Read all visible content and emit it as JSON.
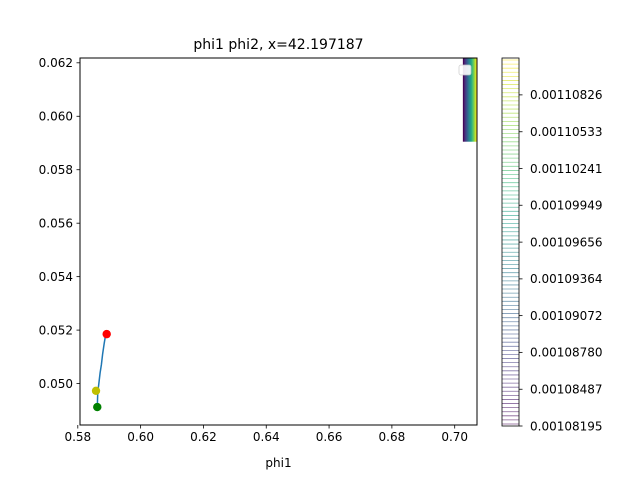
{
  "chart_data": {
    "type": "line",
    "title": "phi1 phi2, x=42.197187",
    "xlabel": "phi1",
    "ylabel": "",
    "xlim": [
      0.5807,
      0.7071
    ],
    "ylim": [
      0.04845,
      0.06218
    ],
    "xticks": [
      0.58,
      0.6,
      0.62,
      0.64,
      0.66,
      0.68,
      0.7
    ],
    "xtick_labels": [
      "0.58",
      "0.60",
      "0.62",
      "0.64",
      "0.66",
      "0.68",
      "0.70"
    ],
    "yticks": [
      0.05,
      0.052,
      0.054,
      0.056,
      0.058,
      0.06,
      0.062
    ],
    "ytick_labels": [
      "0.050",
      "0.052",
      "0.054",
      "0.056",
      "0.058",
      "0.060",
      "0.062"
    ],
    "series": [
      {
        "color": "#1f77b4",
        "x": [
          0.5862,
          0.5863,
          0.5864,
          0.5866,
          0.5868,
          0.5871,
          0.5875,
          0.5879,
          0.5884,
          0.5889
        ],
        "y": [
          0.0491,
          0.04948,
          0.04975,
          0.0499,
          0.0501,
          0.0504,
          0.0507,
          0.0511,
          0.0515,
          0.05185
        ]
      }
    ],
    "markers": [
      {
        "x": 0.5862,
        "y": 0.04912,
        "color": "#008000"
      },
      {
        "x": 0.5858,
        "y": 0.04973,
        "color": "#bfbf00"
      },
      {
        "x": 0.5892,
        "y": 0.05185,
        "color": "#ff0000"
      }
    ],
    "inset_gradient": {
      "x_range": [
        0.7026,
        0.7071
      ],
      "y_range": [
        0.05905,
        0.06218
      ],
      "colormap": "viridis"
    },
    "legend": {
      "position": "upper-right",
      "entries": [
        ""
      ]
    },
    "colorbar": {
      "colormap": "viridis",
      "range": [
        0.00108195,
        0.00111119
      ],
      "ticks": [
        0.00108195,
        0.00108487,
        0.0010878,
        0.00109072,
        0.00109364,
        0.00109656,
        0.00109949,
        0.00110241,
        0.00110533,
        0.00110826
      ],
      "tick_labels": [
        "0.00108195",
        "0.00108487",
        "0.00108780",
        "0.00109072",
        "0.00109364",
        "0.00109656",
        "0.00109949",
        "0.00110241",
        "0.00110533",
        "0.00110826"
      ],
      "line_count": 90
    }
  }
}
